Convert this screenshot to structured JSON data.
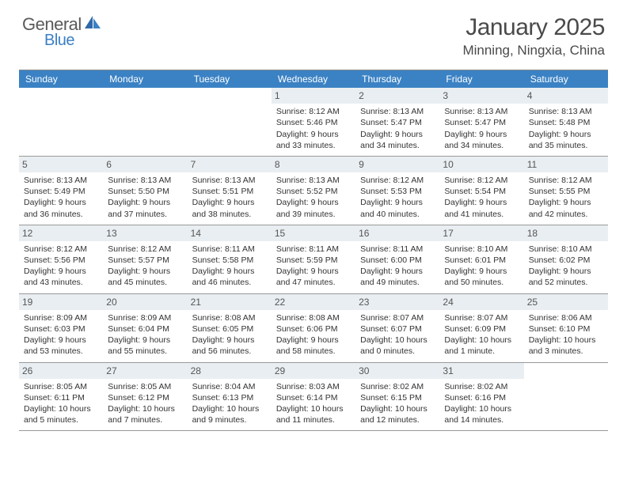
{
  "brand": {
    "word1": "General",
    "word2": "Blue"
  },
  "title": {
    "month": "January 2025",
    "location": "Minning, Ningxia, China"
  },
  "colors": {
    "header_bg": "#3b82c4",
    "header_text": "#ffffff",
    "daynum_bg": "#e9eef2",
    "daynum_text": "#555555",
    "body_text": "#333333",
    "rule": "#999999",
    "logo_gray": "#5a5a5a",
    "logo_blue": "#3b7fc4"
  },
  "typography": {
    "month_fontsize": 30,
    "location_fontsize": 17,
    "dayheader_fontsize": 12,
    "cell_fontsize": 10.5
  },
  "day_names": [
    "Sunday",
    "Monday",
    "Tuesday",
    "Wednesday",
    "Thursday",
    "Friday",
    "Saturday"
  ],
  "weeks": [
    [
      {
        "n": "",
        "sr": "",
        "ss": "",
        "dl": ""
      },
      {
        "n": "",
        "sr": "",
        "ss": "",
        "dl": ""
      },
      {
        "n": "",
        "sr": "",
        "ss": "",
        "dl": ""
      },
      {
        "n": "1",
        "sr": "Sunrise: 8:12 AM",
        "ss": "Sunset: 5:46 PM",
        "dl": "Daylight: 9 hours and 33 minutes."
      },
      {
        "n": "2",
        "sr": "Sunrise: 8:13 AM",
        "ss": "Sunset: 5:47 PM",
        "dl": "Daylight: 9 hours and 34 minutes."
      },
      {
        "n": "3",
        "sr": "Sunrise: 8:13 AM",
        "ss": "Sunset: 5:47 PM",
        "dl": "Daylight: 9 hours and 34 minutes."
      },
      {
        "n": "4",
        "sr": "Sunrise: 8:13 AM",
        "ss": "Sunset: 5:48 PM",
        "dl": "Daylight: 9 hours and 35 minutes."
      }
    ],
    [
      {
        "n": "5",
        "sr": "Sunrise: 8:13 AM",
        "ss": "Sunset: 5:49 PM",
        "dl": "Daylight: 9 hours and 36 minutes."
      },
      {
        "n": "6",
        "sr": "Sunrise: 8:13 AM",
        "ss": "Sunset: 5:50 PM",
        "dl": "Daylight: 9 hours and 37 minutes."
      },
      {
        "n": "7",
        "sr": "Sunrise: 8:13 AM",
        "ss": "Sunset: 5:51 PM",
        "dl": "Daylight: 9 hours and 38 minutes."
      },
      {
        "n": "8",
        "sr": "Sunrise: 8:13 AM",
        "ss": "Sunset: 5:52 PM",
        "dl": "Daylight: 9 hours and 39 minutes."
      },
      {
        "n": "9",
        "sr": "Sunrise: 8:12 AM",
        "ss": "Sunset: 5:53 PM",
        "dl": "Daylight: 9 hours and 40 minutes."
      },
      {
        "n": "10",
        "sr": "Sunrise: 8:12 AM",
        "ss": "Sunset: 5:54 PM",
        "dl": "Daylight: 9 hours and 41 minutes."
      },
      {
        "n": "11",
        "sr": "Sunrise: 8:12 AM",
        "ss": "Sunset: 5:55 PM",
        "dl": "Daylight: 9 hours and 42 minutes."
      }
    ],
    [
      {
        "n": "12",
        "sr": "Sunrise: 8:12 AM",
        "ss": "Sunset: 5:56 PM",
        "dl": "Daylight: 9 hours and 43 minutes."
      },
      {
        "n": "13",
        "sr": "Sunrise: 8:12 AM",
        "ss": "Sunset: 5:57 PM",
        "dl": "Daylight: 9 hours and 45 minutes."
      },
      {
        "n": "14",
        "sr": "Sunrise: 8:11 AM",
        "ss": "Sunset: 5:58 PM",
        "dl": "Daylight: 9 hours and 46 minutes."
      },
      {
        "n": "15",
        "sr": "Sunrise: 8:11 AM",
        "ss": "Sunset: 5:59 PM",
        "dl": "Daylight: 9 hours and 47 minutes."
      },
      {
        "n": "16",
        "sr": "Sunrise: 8:11 AM",
        "ss": "Sunset: 6:00 PM",
        "dl": "Daylight: 9 hours and 49 minutes."
      },
      {
        "n": "17",
        "sr": "Sunrise: 8:10 AM",
        "ss": "Sunset: 6:01 PM",
        "dl": "Daylight: 9 hours and 50 minutes."
      },
      {
        "n": "18",
        "sr": "Sunrise: 8:10 AM",
        "ss": "Sunset: 6:02 PM",
        "dl": "Daylight: 9 hours and 52 minutes."
      }
    ],
    [
      {
        "n": "19",
        "sr": "Sunrise: 8:09 AM",
        "ss": "Sunset: 6:03 PM",
        "dl": "Daylight: 9 hours and 53 minutes."
      },
      {
        "n": "20",
        "sr": "Sunrise: 8:09 AM",
        "ss": "Sunset: 6:04 PM",
        "dl": "Daylight: 9 hours and 55 minutes."
      },
      {
        "n": "21",
        "sr": "Sunrise: 8:08 AM",
        "ss": "Sunset: 6:05 PM",
        "dl": "Daylight: 9 hours and 56 minutes."
      },
      {
        "n": "22",
        "sr": "Sunrise: 8:08 AM",
        "ss": "Sunset: 6:06 PM",
        "dl": "Daylight: 9 hours and 58 minutes."
      },
      {
        "n": "23",
        "sr": "Sunrise: 8:07 AM",
        "ss": "Sunset: 6:07 PM",
        "dl": "Daylight: 10 hours and 0 minutes."
      },
      {
        "n": "24",
        "sr": "Sunrise: 8:07 AM",
        "ss": "Sunset: 6:09 PM",
        "dl": "Daylight: 10 hours and 1 minute."
      },
      {
        "n": "25",
        "sr": "Sunrise: 8:06 AM",
        "ss": "Sunset: 6:10 PM",
        "dl": "Daylight: 10 hours and 3 minutes."
      }
    ],
    [
      {
        "n": "26",
        "sr": "Sunrise: 8:05 AM",
        "ss": "Sunset: 6:11 PM",
        "dl": "Daylight: 10 hours and 5 minutes."
      },
      {
        "n": "27",
        "sr": "Sunrise: 8:05 AM",
        "ss": "Sunset: 6:12 PM",
        "dl": "Daylight: 10 hours and 7 minutes."
      },
      {
        "n": "28",
        "sr": "Sunrise: 8:04 AM",
        "ss": "Sunset: 6:13 PM",
        "dl": "Daylight: 10 hours and 9 minutes."
      },
      {
        "n": "29",
        "sr": "Sunrise: 8:03 AM",
        "ss": "Sunset: 6:14 PM",
        "dl": "Daylight: 10 hours and 11 minutes."
      },
      {
        "n": "30",
        "sr": "Sunrise: 8:02 AM",
        "ss": "Sunset: 6:15 PM",
        "dl": "Daylight: 10 hours and 12 minutes."
      },
      {
        "n": "31",
        "sr": "Sunrise: 8:02 AM",
        "ss": "Sunset: 6:16 PM",
        "dl": "Daylight: 10 hours and 14 minutes."
      },
      {
        "n": "",
        "sr": "",
        "ss": "",
        "dl": ""
      }
    ]
  ]
}
